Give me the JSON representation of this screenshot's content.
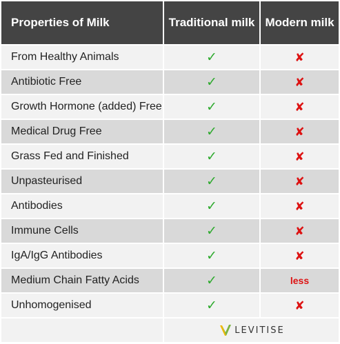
{
  "header": {
    "col1": "Properties of Milk",
    "col2": "Traditional milk",
    "col3": "Modern milk"
  },
  "rows": [
    {
      "label": "From Healthy Animals",
      "traditional": "✓",
      "modern": "✘"
    },
    {
      "label": "Antibiotic Free",
      "traditional": "✓",
      "modern": "✘"
    },
    {
      "label": "Growth Hormone (added) Free",
      "traditional": "✓",
      "modern": "✘"
    },
    {
      "label": "Medical Drug Free",
      "traditional": "✓",
      "modern": "✘"
    },
    {
      "label": "Grass Fed and Finished",
      "traditional": "✓",
      "modern": "✘"
    },
    {
      "label": "Unpasteurised",
      "traditional": "✓",
      "modern": "✘"
    },
    {
      "label": "Antibodies",
      "traditional": "✓",
      "modern": "✘"
    },
    {
      "label": "Immune Cells",
      "traditional": "✓",
      "modern": "✘"
    },
    {
      "label": "IgA/IgG Antibodies",
      "traditional": "✓",
      "modern": "✘"
    },
    {
      "label": "Medium Chain Fatty Acids",
      "traditional": "✓",
      "modern": "less"
    },
    {
      "label": "Unhomogenised",
      "traditional": "✓",
      "modern": "✘"
    }
  ],
  "footer": {
    "logo_text": "LEVITISE",
    "logo_icon": "levitise-logo-icon"
  },
  "colors": {
    "header_bg": "#444444",
    "row_light": "#f2f2f2",
    "row_dark": "#d9d9d9",
    "check": "#2eaa2e",
    "cross": "#dd1111"
  }
}
